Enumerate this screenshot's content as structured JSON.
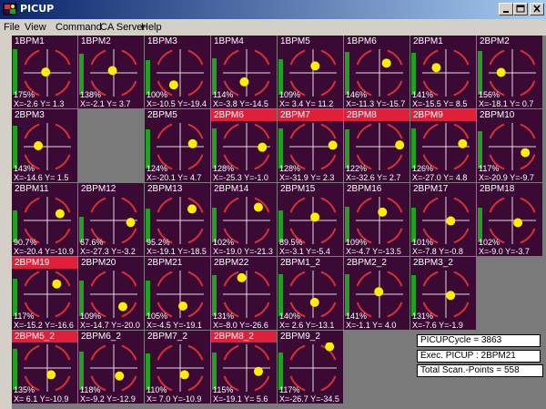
{
  "window": {
    "title": "PICUP"
  },
  "menu": {
    "items": [
      "File",
      "View",
      "Command",
      "CA Server",
      "Help"
    ]
  },
  "tiles": [
    {
      "name": "1BPM1",
      "pct": "175%",
      "xy": "X=-2.6 Y= 1.3",
      "alarm": false,
      "bar": 1.0,
      "dx": -2.6,
      "dy": 1.3
    },
    {
      "name": "1BPM2",
      "pct": "138%",
      "xy": "X=-2.1 Y= 3.7",
      "alarm": false,
      "bar": 0.9,
      "dx": -2.1,
      "dy": 3.7
    },
    {
      "name": "1BPM3",
      "pct": "100%",
      "xy": "X=-10.5 Y=-19.4",
      "alarm": false,
      "bar": 0.75,
      "dx": -10.5,
      "dy": -19.4
    },
    {
      "name": "1BPM4",
      "pct": "114%",
      "xy": "X=-3.8 Y=-14.5",
      "alarm": false,
      "bar": 0.8,
      "dx": -3.8,
      "dy": -14.5
    },
    {
      "name": "1BPM5",
      "pct": "109%",
      "xy": "X= 3.4 Y= 11.2",
      "alarm": false,
      "bar": 0.78,
      "dx": 3.4,
      "dy": 11.2
    },
    {
      "name": "1BPM6",
      "pct": "146%",
      "xy": "X=-11.3 Y=-15.7",
      "alarm": false,
      "bar": 0.93,
      "dx": 11.3,
      "dy": 15.7
    },
    {
      "name": "2BPM1",
      "pct": "141%",
      "xy": "X=-15.5 Y= 8.5",
      "alarm": false,
      "bar": 0.92,
      "dx": -15.5,
      "dy": 8.5
    },
    {
      "name": "2BPM2",
      "pct": "156%",
      "xy": "X=-18.1 Y= 0.7",
      "alarm": false,
      "bar": 0.96,
      "dx": -18.1,
      "dy": 0.7
    },
    {
      "name": "2BPM3",
      "pct": "143%",
      "xy": "X=-14.6 Y= 1.5",
      "alarm": false,
      "bar": 0.93,
      "dx": -14.6,
      "dy": 1.5
    },
    null,
    {
      "name": "2BPM5",
      "pct": "124%",
      "xy": "X=-20.1 Y= 4.7",
      "alarm": false,
      "bar": 0.86,
      "dx": 20.1,
      "dy": 4.7
    },
    {
      "name": "2BPM6",
      "pct": "128%",
      "xy": "X=-25.3 Y=-1.0",
      "alarm": true,
      "bar": 0.88,
      "dx": 25.3,
      "dy": -1.0
    },
    {
      "name": "2BPM7",
      "pct": "128%",
      "xy": "X=-31.9 Y= 2.3",
      "alarm": true,
      "bar": 0.88,
      "dx": 31.9,
      "dy": 2.3
    },
    {
      "name": "2BPM8",
      "pct": "122%",
      "xy": "X=-32.6 Y= 2.7",
      "alarm": true,
      "bar": 0.85,
      "dx": 32.6,
      "dy": 2.7
    },
    {
      "name": "2BPM9",
      "pct": "126%",
      "xy": "X=-27.0 Y= 4.8",
      "alarm": true,
      "bar": 0.87,
      "dx": 27.0,
      "dy": 4.8
    },
    {
      "name": "2BPM10",
      "pct": "117%",
      "xy": "X=-20.9 Y=-9.7",
      "alarm": false,
      "bar": 0.82,
      "dx": 20.9,
      "dy": -9.7
    },
    {
      "name": "2BPM11",
      "pct": "90.7%",
      "xy": "X=-20.4 Y=-10.9",
      "alarm": false,
      "bar": 0.7,
      "dx": 20.4,
      "dy": 10.9
    },
    {
      "name": "2BPM12",
      "pct": "67.6%",
      "xy": "X=-27.3 Y=-3.2",
      "alarm": false,
      "bar": 0.55,
      "dx": 27.3,
      "dy": -3.2
    },
    {
      "name": "2BPM13",
      "pct": "95.2%",
      "xy": "X=-19.1 Y=-18.5",
      "alarm": false,
      "bar": 0.73,
      "dx": 19.1,
      "dy": 18.5
    },
    {
      "name": "2BPM14",
      "pct": "102%",
      "xy": "X=-19.0 Y=-21.3",
      "alarm": false,
      "bar": 0.76,
      "dx": 19.0,
      "dy": 21.3
    },
    {
      "name": "2BPM15",
      "pct": "89.5%",
      "xy": "X=-3.1 Y=-5.4",
      "alarm": false,
      "bar": 0.69,
      "dx": 3.1,
      "dy": 5.4
    },
    {
      "name": "2BPM16",
      "pct": "109%",
      "xy": "X=-4.7 Y=-13.5",
      "alarm": false,
      "bar": 0.78,
      "dx": 4.7,
      "dy": 13.5
    },
    {
      "name": "2BPM17",
      "pct": "101%",
      "xy": "X=-7.8 Y=-0.8",
      "alarm": false,
      "bar": 0.75,
      "dx": 7.8,
      "dy": -0.8
    },
    {
      "name": "2BPM18",
      "pct": "102%",
      "xy": "X=-9.0 Y=-3.7",
      "alarm": false,
      "bar": 0.76,
      "dx": 9.0,
      "dy": -3.7
    },
    {
      "name": "2BPM19",
      "pct": "117%",
      "xy": "X=-15.2 Y=-16.6",
      "alarm": true,
      "bar": 0.82,
      "dx": 15.2,
      "dy": 16.6
    },
    {
      "name": "2BPM20",
      "pct": "109%",
      "xy": "X=-14.7 Y=-20.0",
      "alarm": false,
      "bar": 0.78,
      "dx": 14.7,
      "dy": -20.0
    },
    {
      "name": "2BPM21",
      "pct": "105%",
      "xy": "X=-4.5 Y=-19.1",
      "alarm": false,
      "bar": 0.77,
      "dx": 4.5,
      "dy": -19.1
    },
    {
      "name": "2BPM22",
      "pct": "131%",
      "xy": "X=-8.0 Y=-26.6",
      "alarm": false,
      "bar": 0.89,
      "dx": -8.0,
      "dy": 26.6
    },
    {
      "name": "2BPM1_2",
      "pct": "140%",
      "xy": "X= 2.6 Y=-13.1",
      "alarm": false,
      "bar": 0.92,
      "dx": 2.6,
      "dy": -13.1
    },
    {
      "name": "2BPM2_2",
      "pct": "141%",
      "xy": "X=-1.1 Y= 4.0",
      "alarm": false,
      "bar": 0.92,
      "dx": -1.1,
      "dy": 4.0
    },
    {
      "name": "2BPM3_2",
      "pct": "131%",
      "xy": "X=-7.6 Y=-1.9",
      "alarm": false,
      "bar": 0.89,
      "dx": 7.6,
      "dy": -1.9
    },
    null,
    {
      "name": "2BPM5_2",
      "pct": "135%",
      "xy": "X= 6.1 Y=-10.9",
      "alarm": true,
      "bar": 0.9,
      "dx": 6.1,
      "dy": -10.9
    },
    {
      "name": "2BPM6_2",
      "pct": "118%",
      "xy": "X=-9.2 Y=-12.9",
      "alarm": false,
      "bar": 0.83,
      "dx": 9.2,
      "dy": -12.9
    },
    {
      "name": "2BPM7_2",
      "pct": "110%",
      "xy": "X= 7.0 Y=-10.9",
      "alarm": false,
      "bar": 0.79,
      "dx": 7.0,
      "dy": -10.9
    },
    {
      "name": "2BPM8_2",
      "pct": "115%",
      "xy": "X=-19.1 Y= 5.6",
      "alarm": true,
      "bar": 0.81,
      "dx": 19.1,
      "dy": -5.6
    },
    {
      "name": "2BPM9_2",
      "pct": "117%",
      "xy": "X=-26.7 Y=-34.5",
      "alarm": false,
      "bar": 0.82,
      "dx": 26.7,
      "dy": 34.5
    }
  ],
  "info": {
    "cycle": "PICUPCycle  = 3863",
    "exec": "Exec. PICUP  : 2BPM21",
    "scan": "Total Scan.-Points  = 558"
  },
  "colors": {
    "tile_bg": "#3a0934",
    "alarm": "#e0203a",
    "bar": "#22a024",
    "spot": "#ffee00",
    "ring": "#e03030",
    "area": "#7a7a7a"
  }
}
